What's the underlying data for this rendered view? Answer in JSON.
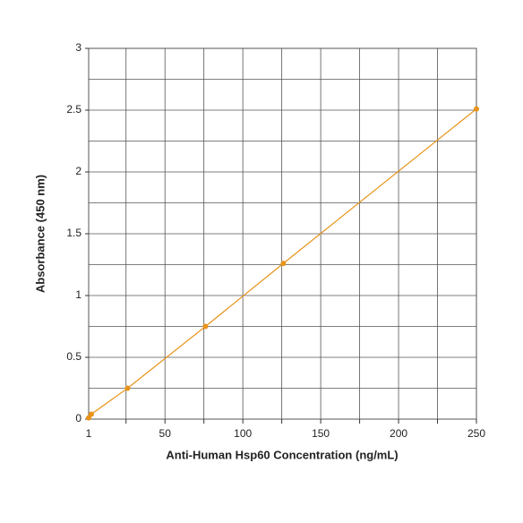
{
  "chart_data": {
    "type": "line",
    "x_label": "Anti-Human Hsp60 Concentration (ng/mL)",
    "y_label": "Absorbance (450 nm)",
    "x": [
      1,
      2.7,
      26,
      76,
      126,
      250
    ],
    "series": [
      {
        "color": "#e8931a",
        "values": [
          0.01,
          0.04,
          0.25,
          0.75,
          1.26,
          2.51
        ]
      }
    ],
    "xlim": [
      1,
      250
    ],
    "ylim": [
      0,
      3
    ],
    "xticks": [
      1,
      50,
      100,
      150,
      200,
      250
    ],
    "yticks": [
      0,
      0.5,
      1.0,
      1.5,
      2.0,
      2.5,
      3.0
    ],
    "xgrid": [
      25,
      50,
      75,
      100,
      125,
      150,
      175,
      200,
      225,
      250
    ],
    "ygrid": [
      0.25,
      0.5,
      0.75,
      1.0,
      1.25,
      1.5,
      1.75,
      2.0,
      2.25,
      2.5,
      2.75,
      3.0
    ],
    "grid": true
  }
}
